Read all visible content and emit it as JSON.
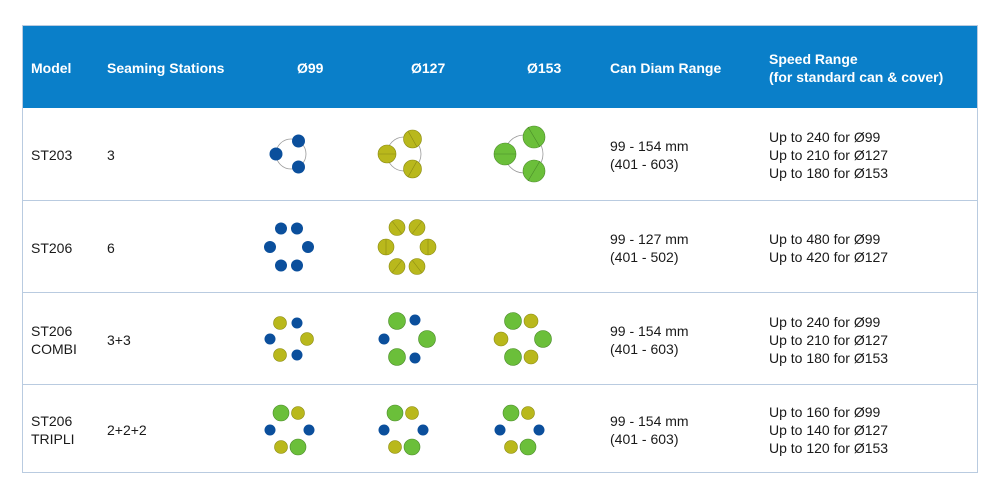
{
  "header": {
    "model": "Model",
    "stations": "Seaming Stations",
    "d99": "Ø99",
    "d127": "Ø127",
    "d153": "Ø153",
    "can_range": "Can Diam Range",
    "speed_line1": "Speed Range",
    "speed_line2": "(for standard can & cover)"
  },
  "rows": [
    {
      "model": [
        "ST203"
      ],
      "stations": "3",
      "diagrams": [
        "3-blue",
        "3-yellow",
        "3-green"
      ],
      "range": [
        "99 - 154 mm",
        "(401 - 603)"
      ],
      "speed": [
        "Up to 240 for Ø99",
        "Up to 210 for Ø127",
        "Up to 180 for Ø153"
      ]
    },
    {
      "model": [
        "ST206"
      ],
      "stations": "6",
      "diagrams": [
        "6-blue",
        "6-yellow",
        ""
      ],
      "range": [
        "99 - 127 mm",
        "(401 - 502)"
      ],
      "speed": [
        "Up to 480 for Ø99",
        "Up to 420 for Ø127"
      ]
    },
    {
      "model": [
        "ST206",
        "COMBI"
      ],
      "stations": "3+3",
      "diagrams": [
        "combi-blue-yellow",
        "combi-blue-green",
        "combi-yellow-green"
      ],
      "range": [
        "99 - 154 mm",
        "(401 - 603)"
      ],
      "speed": [
        "Up to 240 for Ø99",
        "Up to 210 for Ø127",
        "Up to 180 for Ø153"
      ]
    },
    {
      "model": [
        "ST206",
        "TRIPLI"
      ],
      "stations": "2+2+2",
      "diagrams": [
        "tripli-1",
        "tripli-2",
        "tripli-3"
      ],
      "range": [
        "99 - 154 mm",
        "(401 - 603)"
      ],
      "speed": [
        "Up to 160 for Ø99",
        "Up to 140 for Ø127",
        "Up to 120 for Ø153"
      ]
    }
  ],
  "colors": {
    "header_bg": "#0a7fc9",
    "blue": "#0b4f9c",
    "yellow": "#b9b81c",
    "green": "#6bbf3a",
    "border": "#b9cbe0"
  }
}
